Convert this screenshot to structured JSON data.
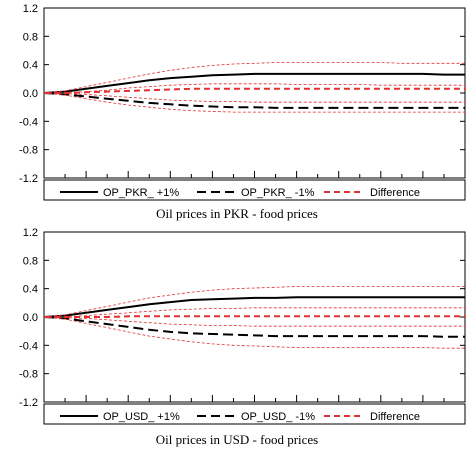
{
  "chart_data": [
    {
      "type": "line",
      "caption": "Oil prices in PKR - food prices",
      "ylim": [
        -1.2,
        1.2
      ],
      "yticks": [
        1.2,
        0.8,
        0.4,
        0.0,
        -0.4,
        -0.8,
        -1.2
      ],
      "ytick_labels": [
        "1.2",
        "0.8",
        "0.4",
        "0.0",
        "-0.4",
        "-0.8",
        "-1.2"
      ],
      "x": [
        0,
        1,
        2,
        3,
        4,
        5,
        6,
        7,
        8,
        9,
        10,
        11,
        12,
        13,
        14,
        15,
        16,
        17,
        18,
        19,
        20
      ],
      "xlim": [
        0,
        20
      ],
      "grid": false,
      "legend_position": "bottom",
      "series": [
        {
          "name": "OP_PKR_ +1%",
          "color": "#000000",
          "style": "solid",
          "width": 2,
          "values": [
            0.0,
            0.02,
            0.06,
            0.1,
            0.14,
            0.18,
            0.21,
            0.23,
            0.25,
            0.26,
            0.27,
            0.27,
            0.27,
            0.27,
            0.27,
            0.27,
            0.27,
            0.27,
            0.27,
            0.26,
            0.26
          ]
        },
        {
          "name": "",
          "color": "#e03030",
          "style": "thin",
          "width": 0.8,
          "values": [
            0.0,
            0.03,
            0.09,
            0.15,
            0.21,
            0.27,
            0.32,
            0.36,
            0.39,
            0.41,
            0.42,
            0.43,
            0.43,
            0.43,
            0.43,
            0.43,
            0.43,
            0.42,
            0.42,
            0.42,
            0.42
          ]
        },
        {
          "name": "",
          "color": "#e03030",
          "style": "thin",
          "width": 0.8,
          "values": [
            0.0,
            0.0,
            0.02,
            0.04,
            0.07,
            0.09,
            0.11,
            0.12,
            0.13,
            0.13,
            0.13,
            0.13,
            0.12,
            0.12,
            0.12,
            0.12,
            0.11,
            0.11,
            0.11,
            0.11,
            0.11
          ]
        },
        {
          "name": "OP_PKR_ -1%",
          "color": "#000000",
          "style": "dashed",
          "width": 2,
          "values": [
            0.0,
            -0.02,
            -0.05,
            -0.08,
            -0.11,
            -0.14,
            -0.16,
            -0.18,
            -0.19,
            -0.2,
            -0.2,
            -0.21,
            -0.21,
            -0.21,
            -0.21,
            -0.21,
            -0.21,
            -0.21,
            -0.21,
            -0.21,
            -0.21
          ]
        },
        {
          "name": "",
          "color": "#e03030",
          "style": "thin",
          "width": 0.8,
          "values": [
            0.0,
            -0.03,
            -0.08,
            -0.13,
            -0.17,
            -0.2,
            -0.23,
            -0.25,
            -0.26,
            -0.27,
            -0.27,
            -0.27,
            -0.27,
            -0.27,
            -0.27,
            -0.27,
            -0.27,
            -0.27,
            -0.27,
            -0.27,
            -0.27
          ]
        },
        {
          "name": "",
          "color": "#e03030",
          "style": "thin",
          "width": 0.8,
          "values": [
            0.0,
            -0.01,
            -0.02,
            -0.04,
            -0.06,
            -0.08,
            -0.1,
            -0.11,
            -0.12,
            -0.12,
            -0.13,
            -0.13,
            -0.13,
            -0.13,
            -0.13,
            -0.13,
            -0.13,
            -0.13,
            -0.13,
            -0.13,
            -0.13
          ]
        },
        {
          "name": "Difference",
          "color": "#e03030",
          "style": "dashed",
          "width": 2,
          "values": [
            0.0,
            0.0,
            0.01,
            0.02,
            0.03,
            0.04,
            0.05,
            0.06,
            0.06,
            0.06,
            0.06,
            0.06,
            0.06,
            0.06,
            0.06,
            0.06,
            0.06,
            0.06,
            0.06,
            0.06,
            0.06
          ]
        }
      ]
    },
    {
      "type": "line",
      "caption": "Oil prices in USD - food prices",
      "ylim": [
        -1.2,
        1.2
      ],
      "yticks": [
        1.2,
        0.8,
        0.4,
        0.0,
        -0.4,
        -0.8,
        -1.2
      ],
      "ytick_labels": [
        "1.2",
        "0.8",
        "0.4",
        "0.0",
        "-0.4",
        "-0.8",
        "-1.2"
      ],
      "x": [
        0,
        1,
        2,
        3,
        4,
        5,
        6,
        7,
        8,
        9,
        10,
        11,
        12,
        13,
        14,
        15,
        16,
        17,
        18,
        19,
        20
      ],
      "xlim": [
        0,
        20
      ],
      "grid": false,
      "legend_position": "bottom",
      "series": [
        {
          "name": "OP_USD_ +1%",
          "color": "#000000",
          "style": "solid",
          "width": 2,
          "values": [
            0.0,
            0.02,
            0.06,
            0.1,
            0.14,
            0.18,
            0.21,
            0.24,
            0.25,
            0.26,
            0.27,
            0.27,
            0.28,
            0.28,
            0.28,
            0.28,
            0.28,
            0.28,
            0.28,
            0.28,
            0.28
          ]
        },
        {
          "name": "",
          "color": "#e03030",
          "style": "thin",
          "width": 0.8,
          "values": [
            0.0,
            0.03,
            0.09,
            0.15,
            0.21,
            0.27,
            0.31,
            0.35,
            0.38,
            0.4,
            0.41,
            0.42,
            0.43,
            0.43,
            0.43,
            0.43,
            0.43,
            0.43,
            0.43,
            0.43,
            0.43
          ]
        },
        {
          "name": "",
          "color": "#e03030",
          "style": "thin",
          "width": 0.8,
          "values": [
            0.0,
            0.0,
            0.02,
            0.04,
            0.06,
            0.08,
            0.1,
            0.11,
            0.12,
            0.12,
            0.13,
            0.13,
            0.13,
            0.13,
            0.13,
            0.13,
            0.13,
            0.13,
            0.13,
            0.13,
            0.13
          ]
        },
        {
          "name": "OP_USD_ -1%",
          "color": "#000000",
          "style": "dashed",
          "width": 2,
          "values": [
            0.0,
            -0.02,
            -0.06,
            -0.1,
            -0.14,
            -0.18,
            -0.21,
            -0.23,
            -0.24,
            -0.25,
            -0.26,
            -0.27,
            -0.27,
            -0.27,
            -0.27,
            -0.27,
            -0.27,
            -0.27,
            -0.27,
            -0.28,
            -0.28
          ]
        },
        {
          "name": "",
          "color": "#e03030",
          "style": "thin",
          "width": 0.8,
          "values": [
            0.0,
            -0.03,
            -0.09,
            -0.15,
            -0.21,
            -0.27,
            -0.31,
            -0.35,
            -0.38,
            -0.4,
            -0.41,
            -0.42,
            -0.43,
            -0.43,
            -0.43,
            -0.43,
            -0.43,
            -0.43,
            -0.43,
            -0.44,
            -0.44
          ]
        },
        {
          "name": "",
          "color": "#e03030",
          "style": "thin",
          "width": 0.8,
          "values": [
            0.0,
            -0.01,
            -0.02,
            -0.04,
            -0.06,
            -0.08,
            -0.1,
            -0.11,
            -0.12,
            -0.12,
            -0.13,
            -0.13,
            -0.13,
            -0.13,
            -0.13,
            -0.13,
            -0.13,
            -0.13,
            -0.13,
            -0.13,
            -0.13
          ]
        },
        {
          "name": "Difference",
          "color": "#e03030",
          "style": "dashed",
          "width": 2,
          "values": [
            0.0,
            0.0,
            0.0,
            0.0,
            0.01,
            0.01,
            0.01,
            0.01,
            0.01,
            0.01,
            0.01,
            0.01,
            0.01,
            0.01,
            0.01,
            0.01,
            0.01,
            0.01,
            0.01,
            0.01,
            0.01
          ]
        }
      ]
    }
  ]
}
